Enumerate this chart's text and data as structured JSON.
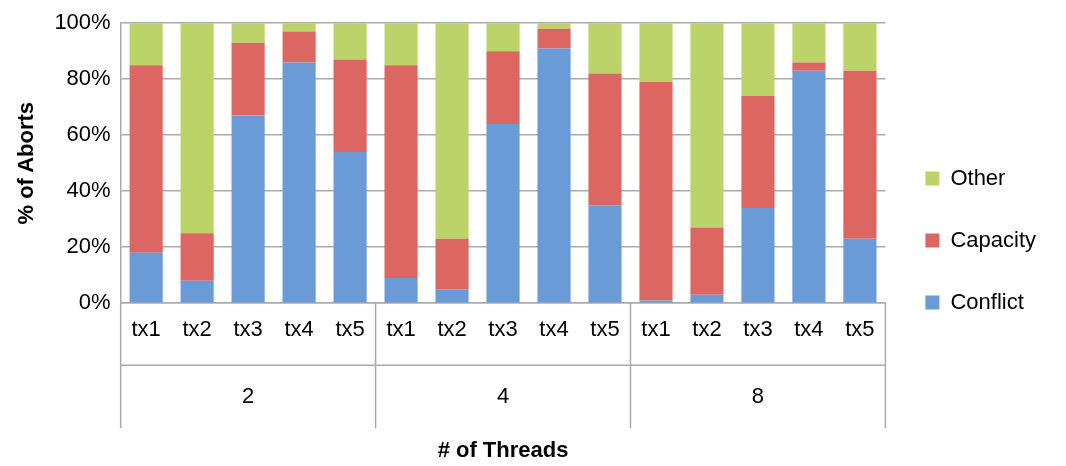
{
  "chart_data": {
    "type": "bar",
    "stacked": true,
    "xlabel": "# of Threads",
    "ylabel": "% of Aborts",
    "categories": [
      "tx1",
      "tx2",
      "tx3",
      "tx4",
      "tx5",
      "tx1",
      "tx2",
      "tx3",
      "tx4",
      "tx5",
      "tx1",
      "tx2",
      "tx3",
      "tx4",
      "tx5"
    ],
    "annotations": [
      "2",
      "4",
      "8"
    ],
    "series": [
      {
        "name": "Conflict",
        "color": "#6a9bd6",
        "values": [
          18,
          8,
          67,
          86,
          54,
          9,
          5,
          64,
          91,
          35,
          1,
          3,
          34,
          83,
          23
        ]
      },
      {
        "name": "Capacity",
        "color": "#dc6661",
        "values": [
          67,
          17,
          26,
          11,
          33,
          76,
          18,
          26,
          7,
          47,
          78,
          24,
          40,
          3,
          60
        ]
      },
      {
        "name": "Other",
        "color": "#bcd36a",
        "values": [
          15,
          75,
          7,
          3,
          13,
          15,
          77,
          10,
          2,
          18,
          21,
          73,
          26,
          14,
          17
        ]
      }
    ],
    "ylim": [
      0,
      100
    ],
    "yticks": [
      {
        "value": 0,
        "label": "0%"
      },
      {
        "value": 20,
        "label": "20%"
      },
      {
        "value": 40,
        "label": "40%"
      },
      {
        "value": 60,
        "label": "60%"
      },
      {
        "value": 80,
        "label": "80%"
      },
      {
        "value": 100,
        "label": "100%"
      }
    ],
    "grid": "y",
    "legend": "right"
  }
}
